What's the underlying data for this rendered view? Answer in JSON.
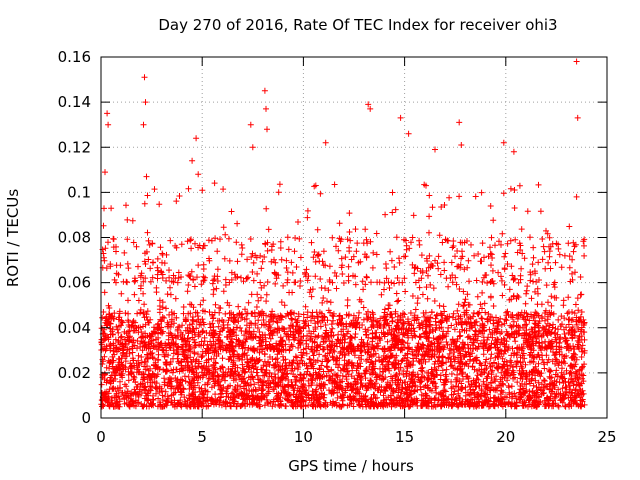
{
  "chart_data": {
    "type": "scatter",
    "title": "Day 270 of 2016, Rate Of TEC Index for receiver ohi3",
    "xlabel": "GPS time / hours",
    "ylabel": "ROTI / TECUs",
    "xlim": [
      0,
      25
    ],
    "ylim": [
      0,
      0.16
    ],
    "xticks": [
      0,
      5,
      10,
      15,
      20,
      25
    ],
    "xtick_labels": [
      "0",
      "5",
      "10",
      "15",
      "20",
      "25"
    ],
    "yticks": [
      0,
      0.02,
      0.04,
      0.06,
      0.08,
      0.1,
      0.12,
      0.14,
      0.16
    ],
    "ytick_labels": [
      "0",
      "0.02",
      "0.04",
      "0.06",
      "0.08",
      "0.1",
      "0.12",
      "0.14",
      "0.16"
    ],
    "grid": true,
    "marker": "+",
    "color": "#ff0000",
    "x_data_range": [
      0,
      23.9
    ],
    "typical_band": [
      0.005,
      0.045
    ],
    "notable_points": [
      {
        "x": 0.2,
        "y": 0.109
      },
      {
        "x": 0.3,
        "y": 0.135
      },
      {
        "x": 0.35,
        "y": 0.13
      },
      {
        "x": 0.5,
        "y": 0.093
      },
      {
        "x": 2.15,
        "y": 0.151
      },
      {
        "x": 2.2,
        "y": 0.14
      },
      {
        "x": 2.1,
        "y": 0.13
      },
      {
        "x": 2.25,
        "y": 0.107
      },
      {
        "x": 4.5,
        "y": 0.114
      },
      {
        "x": 4.7,
        "y": 0.124
      },
      {
        "x": 4.8,
        "y": 0.108
      },
      {
        "x": 7.4,
        "y": 0.13
      },
      {
        "x": 7.5,
        "y": 0.12
      },
      {
        "x": 8.1,
        "y": 0.145
      },
      {
        "x": 8.15,
        "y": 0.137
      },
      {
        "x": 8.2,
        "y": 0.128
      },
      {
        "x": 11.1,
        "y": 0.122
      },
      {
        "x": 13.2,
        "y": 0.139
      },
      {
        "x": 13.3,
        "y": 0.137
      },
      {
        "x": 14.8,
        "y": 0.133
      },
      {
        "x": 15.2,
        "y": 0.126
      },
      {
        "x": 16.5,
        "y": 0.119
      },
      {
        "x": 17.7,
        "y": 0.131
      },
      {
        "x": 17.8,
        "y": 0.121
      },
      {
        "x": 19.9,
        "y": 0.122
      },
      {
        "x": 20.4,
        "y": 0.118
      },
      {
        "x": 23.5,
        "y": 0.158
      },
      {
        "x": 23.55,
        "y": 0.133
      },
      {
        "x": 23.5,
        "y": 0.098
      }
    ]
  }
}
